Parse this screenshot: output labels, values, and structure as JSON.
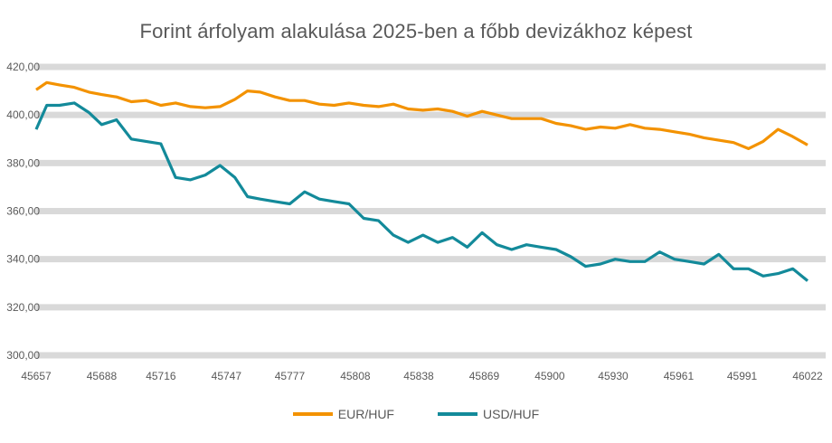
{
  "title": "Forint árfolyam alakulása 2025-ben a főbb devizákhoz képest",
  "legend": [
    {
      "label": "EUR/HUF",
      "color": "#F39200"
    },
    {
      "label": "USD/HUF",
      "color": "#138A9A"
    }
  ],
  "chart_data": {
    "type": "line",
    "title": "Forint árfolyam alakulása 2025-ben a főbb devizákhoz képest",
    "xlabel": "",
    "ylabel": "",
    "ylim": [
      300,
      420
    ],
    "yticks": [
      300,
      320,
      340,
      360,
      380,
      400,
      420
    ],
    "xlim": [
      45657,
      46022
    ],
    "xticks": [
      45657,
      45688,
      45716,
      45747,
      45777,
      45808,
      45838,
      45869,
      45900,
      45930,
      45961,
      45991,
      46022
    ],
    "grid": true,
    "legend_position": "bottom",
    "x": [
      45657,
      45662,
      45668,
      45675,
      45682,
      45688,
      45695,
      45702,
      45709,
      45716,
      45723,
      45730,
      45737,
      45744,
      45751,
      45757,
      45763,
      45770,
      45777,
      45784,
      45791,
      45798,
      45805,
      45812,
      45819,
      45826,
      45833,
      45840,
      45847,
      45854,
      45861,
      45868,
      45875,
      45882,
      45889,
      45896,
      45903,
      45910,
      45917,
      45924,
      45931,
      45938,
      45945,
      45952,
      45959,
      45966,
      45973,
      45980,
      45987,
      45994,
      46001,
      46008,
      46015,
      46022
    ],
    "series": [
      {
        "name": "EUR/HUF",
        "color": "#F39200",
        "values": [
          410.5,
          413.5,
          412.5,
          411.5,
          409.5,
          408.5,
          407.5,
          405.5,
          406,
          404,
          405,
          403.5,
          403,
          403.5,
          406.5,
          410,
          409.5,
          407.5,
          406,
          406,
          404.5,
          404,
          405,
          404,
          403.5,
          404.5,
          402.5,
          402,
          402.5,
          401.5,
          399.5,
          401.5,
          400,
          398.5,
          398.5,
          398.5,
          396.5,
          395.5,
          394,
          395,
          394.5,
          396,
          394.5,
          394,
          393,
          392,
          390.5,
          389.5,
          388.5,
          386,
          389,
          394,
          391,
          387.5
        ]
      },
      {
        "name": "USD/HUF",
        "color": "#138A9A",
        "values": [
          394,
          404,
          404,
          405,
          401,
          396,
          398,
          390,
          389,
          388,
          374,
          373,
          375,
          379,
          374,
          366,
          365,
          364,
          363,
          368,
          365,
          364,
          363,
          357,
          356,
          350,
          347,
          350,
          347,
          349,
          345,
          351,
          346,
          344,
          346,
          345,
          344,
          341,
          337,
          338,
          340,
          339,
          339,
          343,
          340,
          339,
          338,
          342,
          336,
          336,
          333,
          334,
          336,
          331
        ]
      }
    ]
  }
}
